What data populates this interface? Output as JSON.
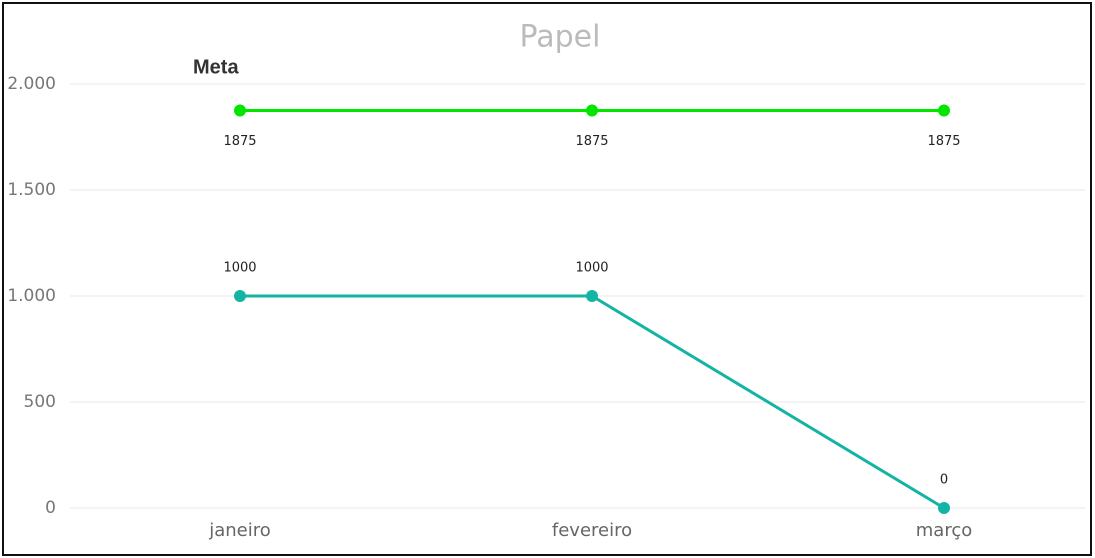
{
  "chart_data": {
    "type": "line",
    "title": "Papel",
    "categories": [
      "janeiro",
      "fevereiro",
      "março"
    ],
    "series": [
      {
        "name": "Meta",
        "color": "#00e600",
        "values": [
          1875,
          1875,
          1875
        ]
      },
      {
        "color": "#14b4a4",
        "values": [
          1000,
          1000,
          0
        ]
      }
    ],
    "ylim": [
      0,
      2000
    ],
    "yticks": [
      0,
      500,
      {
        "value": 1000,
        "label": "1.000"
      },
      {
        "value": 1500,
        "label": "1.500"
      },
      {
        "value": 2000,
        "label": "2.000"
      }
    ],
    "grid": true
  }
}
